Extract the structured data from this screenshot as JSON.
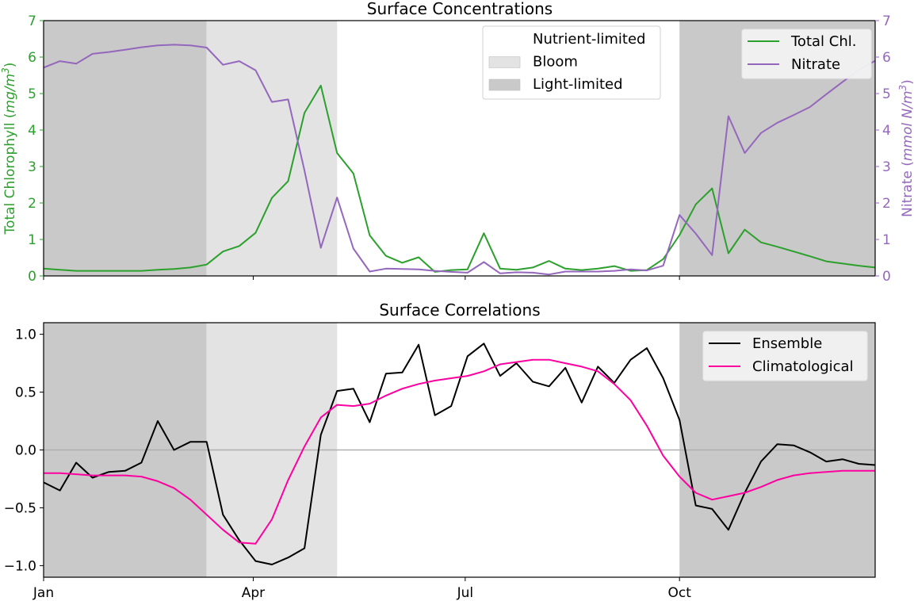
{
  "chart_data": [
    {
      "type": "line",
      "title": "Surface Concentrations",
      "x_unit": "day of year",
      "xlim": [
        0,
        357
      ],
      "x_ticks": [
        0,
        90,
        181,
        273
      ],
      "x_tick_labels_shown": false,
      "left_axis": {
        "ylabel_prefix": "Total Chlorophyll (",
        "ylabel_unit": "mg/m",
        "ylabel_exp": "3",
        "ylabel_suffix": ")",
        "ylim": [
          0,
          7
        ],
        "ticks": [
          "0",
          "1",
          "2",
          "3",
          "4",
          "5",
          "6",
          "7"
        ],
        "color": "#2ca02c"
      },
      "right_axis": {
        "ylabel_prefix": "Nitrate (",
        "ylabel_unit": "mmol N/m",
        "ylabel_exp": "3",
        "ylabel_suffix": ")",
        "ylim": [
          0,
          7
        ],
        "ticks": [
          "0",
          "1",
          "2",
          "3",
          "4",
          "5",
          "6",
          "7"
        ],
        "color": "#9467bd"
      },
      "regions": [
        {
          "name": "Light-limited",
          "start": 0,
          "end": 70,
          "color": "#c9c9c9"
        },
        {
          "name": "Bloom",
          "start": 70,
          "end": 126,
          "color": "#e3e3e3"
        },
        {
          "name": "Light-limited",
          "start": 273,
          "end": 357,
          "color": "#c9c9c9"
        }
      ],
      "region_legend": [
        {
          "label": "Nutrient-limited",
          "color": "#ffffff"
        },
        {
          "label": "Bloom",
          "color": "#e3e3e3"
        },
        {
          "label": "Light-limited",
          "color": "#c9c9c9"
        }
      ],
      "legend_placement": "top-right",
      "x_step_days": 7,
      "series": [
        {
          "name": "Total Chl.",
          "axis": "left",
          "color": "#2ca02c",
          "values": [
            0.2,
            0.17,
            0.14,
            0.14,
            0.14,
            0.14,
            0.14,
            0.17,
            0.19,
            0.23,
            0.31,
            0.67,
            0.82,
            1.18,
            2.14,
            2.6,
            4.47,
            5.22,
            3.37,
            2.81,
            1.11,
            0.55,
            0.36,
            0.51,
            0.11,
            0.16,
            0.18,
            1.17,
            0.2,
            0.17,
            0.23,
            0.41,
            0.2,
            0.16,
            0.2,
            0.27,
            0.14,
            0.16,
            0.46,
            1.12,
            1.96,
            2.4,
            0.62,
            1.27,
            0.92,
            0.8,
            0.67,
            0.54,
            0.4,
            0.34,
            0.28,
            0.23
          ]
        },
        {
          "name": "Nitrate",
          "axis": "right",
          "color": "#9467bd",
          "values": [
            5.71,
            5.89,
            5.82,
            6.09,
            6.14,
            6.2,
            6.27,
            6.32,
            6.34,
            6.32,
            6.26,
            5.79,
            5.89,
            5.64,
            4.77,
            4.84,
            2.89,
            0.77,
            2.15,
            0.75,
            0.12,
            0.2,
            0.19,
            0.18,
            0.14,
            0.11,
            0.09,
            0.38,
            0.07,
            0.1,
            0.09,
            0.04,
            0.12,
            0.12,
            0.12,
            0.14,
            0.18,
            0.15,
            0.28,
            1.67,
            1.16,
            0.57,
            4.38,
            3.37,
            3.92,
            4.2,
            4.41,
            4.63,
            4.98,
            5.32,
            5.65,
            5.9
          ]
        }
      ]
    },
    {
      "type": "line",
      "title": "Surface Correlations",
      "x_unit": "day of year",
      "xlim": [
        0,
        357
      ],
      "x_ticks": [
        0,
        90,
        181,
        273
      ],
      "x_tick_labels": [
        "Jan",
        "Apr",
        "Jul",
        "Oct"
      ],
      "ylim": [
        -1.1,
        1.1
      ],
      "y_ticks": [
        -1.0,
        -0.5,
        0.0,
        0.5,
        1.0
      ],
      "y_tick_labels": [
        "−1.0",
        "−0.5",
        "0.0",
        "0.5",
        "1.0"
      ],
      "reference_line": {
        "y": 0,
        "color": "#b0b0b0"
      },
      "regions": [
        {
          "name": "Light-limited",
          "start": 0,
          "end": 70,
          "color": "#c9c9c9"
        },
        {
          "name": "Bloom",
          "start": 70,
          "end": 126,
          "color": "#e3e3e3"
        },
        {
          "name": "Light-limited",
          "start": 273,
          "end": 357,
          "color": "#c9c9c9"
        }
      ],
      "legend_placement": "top-right",
      "x_step_days": 7,
      "series": [
        {
          "name": "Ensemble",
          "color": "#000000",
          "values": [
            -0.28,
            -0.35,
            -0.11,
            -0.24,
            -0.19,
            -0.18,
            -0.11,
            0.25,
            0.0,
            0.07,
            0.07,
            -0.56,
            -0.78,
            -0.96,
            -0.99,
            -0.93,
            -0.85,
            0.13,
            0.51,
            0.53,
            0.24,
            0.66,
            0.67,
            0.91,
            0.3,
            0.38,
            0.81,
            0.92,
            0.64,
            0.75,
            0.59,
            0.55,
            0.71,
            0.41,
            0.72,
            0.58,
            0.78,
            0.88,
            0.62,
            0.26,
            -0.48,
            -0.51,
            -0.69,
            -0.37,
            -0.1,
            0.05,
            0.04,
            -0.02,
            -0.1,
            -0.08,
            -0.12,
            -0.13
          ]
        },
        {
          "name": "Climatological",
          "color": "#ff00a0",
          "values": [
            -0.2,
            -0.2,
            -0.21,
            -0.22,
            -0.22,
            -0.22,
            -0.23,
            -0.27,
            -0.33,
            -0.43,
            -0.56,
            -0.69,
            -0.8,
            -0.81,
            -0.6,
            -0.26,
            0.03,
            0.28,
            0.39,
            0.38,
            0.4,
            0.47,
            0.53,
            0.57,
            0.6,
            0.62,
            0.64,
            0.68,
            0.74,
            0.76,
            0.78,
            0.78,
            0.75,
            0.72,
            0.68,
            0.57,
            0.43,
            0.21,
            -0.05,
            -0.23,
            -0.37,
            -0.43,
            -0.4,
            -0.37,
            -0.32,
            -0.26,
            -0.22,
            -0.2,
            -0.19,
            -0.18,
            -0.18,
            -0.18
          ]
        }
      ]
    }
  ]
}
